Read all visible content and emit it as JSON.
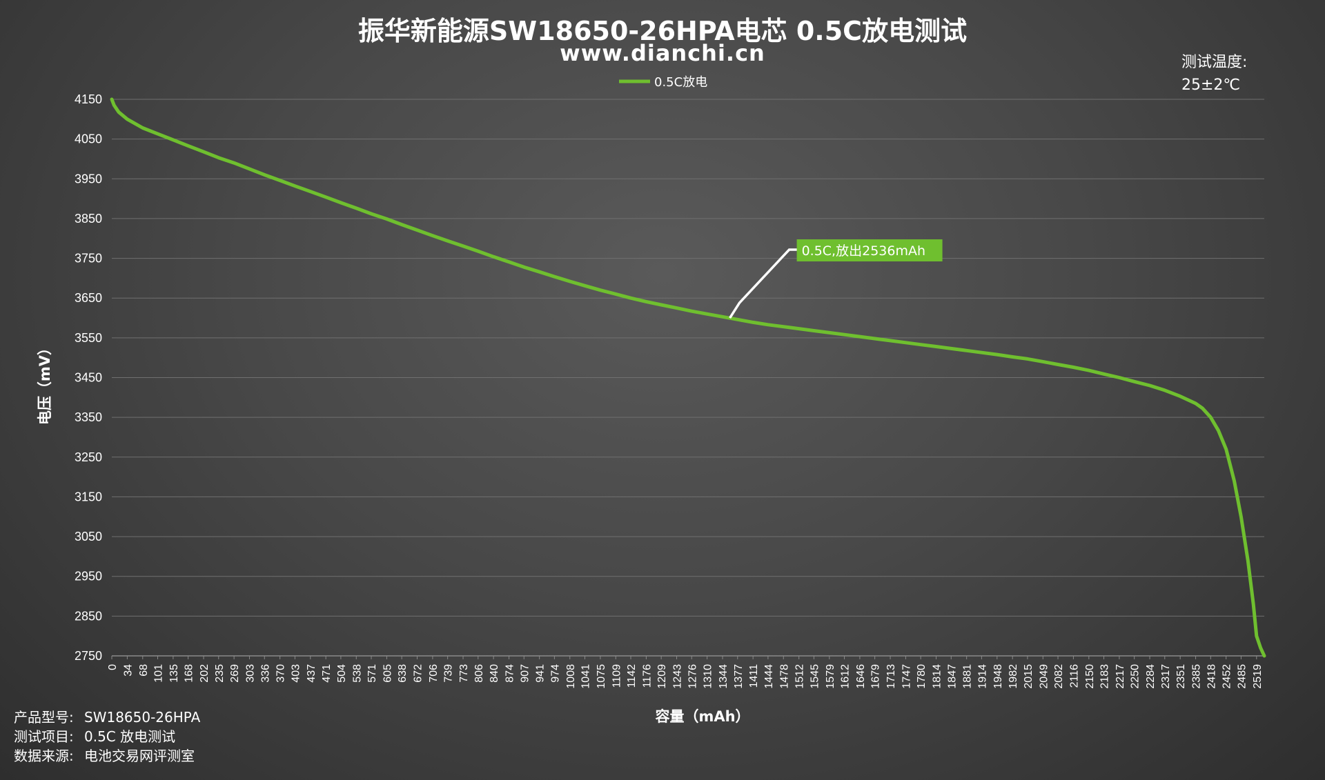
{
  "header": {
    "title": "振华新能源SW18650-26HPA电芯 0.5C放电测试",
    "subtitle": "www.dianchi.cn"
  },
  "temperature": {
    "label": "测试温度:",
    "value": "25±2℃"
  },
  "info": [
    {
      "label": "产品型号:",
      "value": "SW18650-26HPA"
    },
    {
      "label": "测试项目:",
      "value": "0.5C 放电测试"
    },
    {
      "label": "数据来源:",
      "value": "电池交易网评测室"
    }
  ],
  "colors": {
    "series": "#6fbf2f",
    "annotation_box": "#6fbf2f",
    "grid": "#707070"
  },
  "chart_data": {
    "type": "line",
    "xlabel": "容量（mAh）",
    "ylabel": "电压（mV）",
    "xlim": [
      0,
      2536
    ],
    "ylim": [
      2750,
      4150
    ],
    "yticks": [
      4150,
      4050,
      3950,
      3850,
      3750,
      3650,
      3550,
      3450,
      3350,
      3250,
      3150,
      3050,
      2950,
      2850,
      2750
    ],
    "xticks": [
      0,
      34,
      68,
      101,
      135,
      168,
      202,
      235,
      269,
      303,
      336,
      370,
      403,
      437,
      471,
      504,
      538,
      571,
      605,
      638,
      672,
      706,
      739,
      773,
      806,
      840,
      874,
      907,
      941,
      974,
      1008,
      1041,
      1075,
      1109,
      1142,
      1176,
      1209,
      1243,
      1276,
      1310,
      1344,
      1377,
      1411,
      1444,
      1478,
      1512,
      1545,
      1579,
      1612,
      1646,
      1679,
      1713,
      1747,
      1780,
      1814,
      1847,
      1881,
      1914,
      1948,
      1982,
      2015,
      2049,
      2082,
      2116,
      2150,
      2183,
      2217,
      2250,
      2284,
      2317,
      2351,
      2385,
      2418,
      2452,
      2485,
      2519
    ],
    "grid": true,
    "legend": {
      "position": "top-center"
    },
    "series": [
      {
        "name": "0.5C放电",
        "x": [
          0,
          5,
          15,
          34,
          68,
          101,
          135,
          168,
          202,
          235,
          269,
          303,
          336,
          370,
          403,
          437,
          471,
          504,
          538,
          571,
          605,
          638,
          672,
          706,
          739,
          773,
          806,
          840,
          874,
          907,
          941,
          974,
          1008,
          1041,
          1075,
          1109,
          1142,
          1176,
          1209,
          1243,
          1276,
          1310,
          1344,
          1377,
          1411,
          1444,
          1478,
          1512,
          1545,
          1579,
          1612,
          1646,
          1679,
          1713,
          1747,
          1780,
          1814,
          1847,
          1881,
          1914,
          1948,
          1982,
          2015,
          2049,
          2082,
          2116,
          2150,
          2183,
          2217,
          2250,
          2284,
          2317,
          2351,
          2385,
          2400,
          2418,
          2435,
          2452,
          2470,
          2485,
          2500,
          2512,
          2519,
          2528,
          2536
        ],
        "values": [
          4150,
          4135,
          4118,
          4100,
          4078,
          4063,
          4048,
          4033,
          4018,
          4003,
          3990,
          3975,
          3960,
          3946,
          3932,
          3918,
          3904,
          3890,
          3876,
          3862,
          3849,
          3835,
          3821,
          3807,
          3794,
          3781,
          3768,
          3754,
          3741,
          3728,
          3716,
          3704,
          3692,
          3681,
          3670,
          3660,
          3650,
          3641,
          3633,
          3625,
          3617,
          3610,
          3603,
          3596,
          3589,
          3583,
          3578,
          3573,
          3568,
          3563,
          3558,
          3553,
          3548,
          3543,
          3538,
          3533,
          3528,
          3523,
          3518,
          3513,
          3508,
          3502,
          3497,
          3490,
          3483,
          3476,
          3468,
          3459,
          3450,
          3440,
          3430,
          3418,
          3403,
          3385,
          3373,
          3350,
          3317,
          3270,
          3190,
          3100,
          2990,
          2880,
          2800,
          2770,
          2750
        ]
      }
    ],
    "annotation": {
      "x": 1360,
      "y": 3600,
      "text": "0.5C,放出2536mAh"
    }
  }
}
